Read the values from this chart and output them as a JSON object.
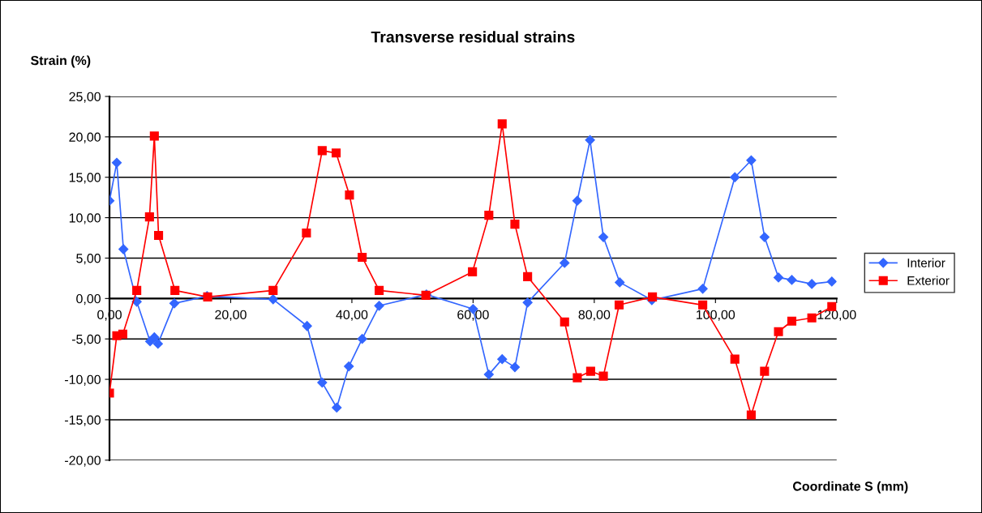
{
  "chart_data": {
    "type": "line",
    "title": "Transverse residual strains",
    "xlabel": "Coordinate S (mm)",
    "ylabel": "Strain (%)",
    "xlim": [
      0,
      120
    ],
    "xticks": [
      {
        "value": 0,
        "label": "0,00"
      },
      {
        "value": 20,
        "label": "20,00"
      },
      {
        "value": 40,
        "label": "40,00"
      },
      {
        "value": 60,
        "label": "60,00"
      },
      {
        "value": 80,
        "label": "80,00"
      },
      {
        "value": 100,
        "label": "100,00"
      },
      {
        "value": 120,
        "label": "120,00"
      }
    ],
    "ylim": [
      -20,
      25
    ],
    "yticks": [
      {
        "value": -20,
        "label": "-20,00"
      },
      {
        "value": -15,
        "label": "-15,00"
      },
      {
        "value": -10,
        "label": "-10,00"
      },
      {
        "value": -5,
        "label": "-5,00"
      },
      {
        "value": 0,
        "label": "0,00"
      },
      {
        "value": 5,
        "label": "5,00"
      },
      {
        "value": 10,
        "label": "10,00"
      },
      {
        "value": 15,
        "label": "15,00"
      },
      {
        "value": 20,
        "label": "20,00"
      },
      {
        "value": 25,
        "label": "25,00"
      }
    ],
    "grid": "y",
    "legend": "right",
    "line_style": "solid",
    "series": [
      {
        "name": "Interior",
        "color": "#3366ff",
        "marker": "diamond",
        "x": [
          0,
          1.2,
          2.3,
          4.5,
          6.7,
          7.4,
          8.0,
          10.7,
          16.1,
          27.0,
          32.6,
          35.1,
          37.5,
          39.5,
          41.7,
          44.5,
          52.3,
          60.0,
          62.6,
          64.8,
          66.9,
          69.0,
          75.1,
          77.2,
          79.3,
          81.5,
          84.2,
          89.5,
          97.9,
          103.2,
          105.9,
          108.1,
          110.4,
          112.6,
          115.9,
          119.2
        ],
        "values": [
          12.1,
          16.8,
          6.1,
          -0.4,
          -5.3,
          -4.8,
          -5.6,
          -0.6,
          0.3,
          -0.1,
          -3.4,
          -10.4,
          -13.5,
          -8.4,
          -5.0,
          -0.9,
          0.5,
          -1.3,
          -9.4,
          -7.5,
          -8.5,
          -0.5,
          4.4,
          12.1,
          19.6,
          7.6,
          2.0,
          -0.2,
          1.2,
          15.0,
          17.1,
          7.6,
          2.6,
          2.3,
          1.8,
          2.1
        ]
      },
      {
        "name": "Exterior",
        "color": "#ff0000",
        "marker": "square",
        "x": [
          0,
          1.2,
          2.2,
          4.5,
          6.6,
          7.4,
          8.1,
          10.8,
          16.2,
          27.0,
          32.5,
          35.1,
          37.4,
          39.6,
          41.7,
          44.5,
          52.2,
          59.9,
          62.6,
          64.8,
          66.9,
          69.0,
          75.1,
          77.2,
          79.4,
          81.5,
          84.1,
          89.6,
          97.9,
          103.2,
          105.9,
          108.1,
          110.4,
          112.6,
          115.9,
          119.2
        ],
        "values": [
          -11.7,
          -4.6,
          -4.4,
          1.0,
          10.1,
          20.1,
          7.8,
          1.0,
          0.2,
          1.0,
          8.1,
          18.3,
          18.0,
          12.8,
          5.1,
          1.0,
          0.4,
          3.3,
          10.3,
          21.6,
          9.2,
          2.7,
          -2.9,
          -9.8,
          -9.0,
          -9.6,
          -0.8,
          0.2,
          -0.8,
          -7.5,
          -14.4,
          -9.0,
          -4.1,
          -2.8,
          -2.4,
          -1.0
        ]
      }
    ]
  }
}
